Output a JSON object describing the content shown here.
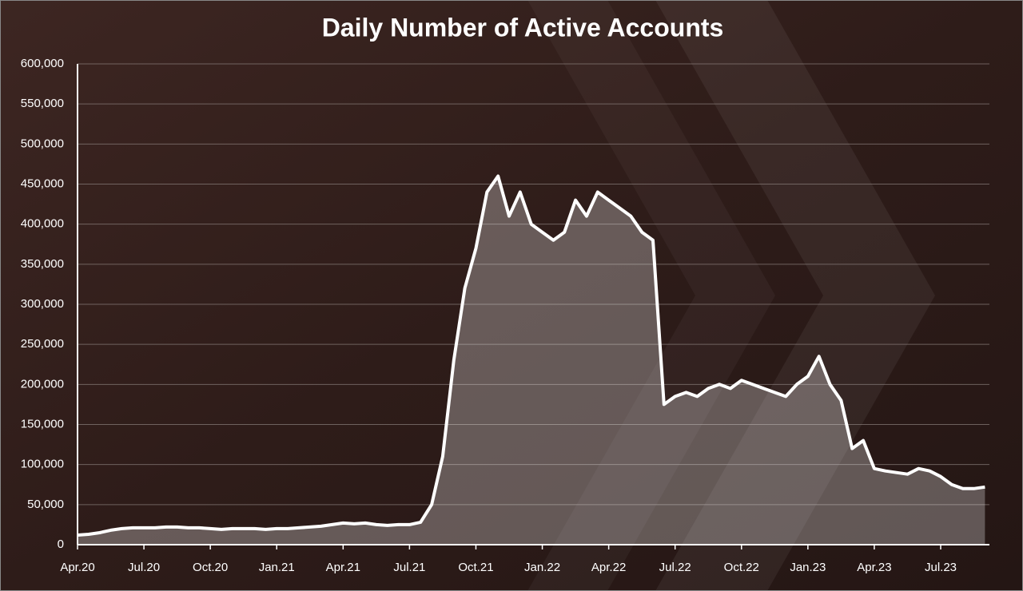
{
  "chart_data": {
    "type": "area",
    "title": "Daily Number of Active Accounts",
    "categories": [
      "Apr.20",
      null,
      null,
      null,
      null,
      null,
      "Jul.20",
      null,
      null,
      null,
      null,
      null,
      "Oct.20",
      null,
      null,
      null,
      null,
      null,
      "Jan.21",
      null,
      null,
      null,
      null,
      null,
      "Apr.21",
      null,
      null,
      null,
      null,
      null,
      "Jul.21",
      null,
      null,
      null,
      null,
      null,
      "Oct.21",
      null,
      null,
      null,
      null,
      null,
      "Jan.22",
      null,
      null,
      null,
      null,
      null,
      "Apr.22",
      null,
      null,
      null,
      null,
      null,
      "Jul.22",
      null,
      null,
      null,
      null,
      null,
      "Oct.22",
      null,
      null,
      null,
      null,
      null,
      "Jan.23",
      null,
      null,
      null,
      null,
      null,
      "Apr.23",
      null,
      null,
      null,
      null,
      null,
      "Jul.23",
      null,
      null,
      null,
      null
    ],
    "values": [
      12000,
      13000,
      15000,
      18000,
      20000,
      21000,
      21000,
      21000,
      22000,
      22000,
      21000,
      21000,
      20000,
      19000,
      20000,
      20000,
      20000,
      19000,
      20000,
      20000,
      21000,
      22000,
      23000,
      25000,
      27000,
      26000,
      27000,
      25000,
      24000,
      25000,
      25000,
      28000,
      50000,
      110000,
      230000,
      320000,
      370000,
      440000,
      460000,
      410000,
      440000,
      400000,
      390000,
      380000,
      390000,
      430000,
      410000,
      440000,
      430000,
      420000,
      410000,
      390000,
      380000,
      175000,
      185000,
      190000,
      185000,
      195000,
      200000,
      195000,
      205000,
      200000,
      195000,
      190000,
      185000,
      200000,
      210000,
      235000,
      200000,
      180000,
      120000,
      130000,
      95000,
      92000,
      90000,
      88000,
      95000,
      92000,
      85000,
      75000,
      70000,
      70000,
      72000
    ],
    "color": "#ffffff",
    "ylim": [
      0,
      600000
    ],
    "yticks": [
      0,
      {
        "value": 50000,
        "label": "50,000"
      },
      {
        "value": 100000,
        "label": "100,000"
      },
      {
        "value": 150000,
        "label": "150,000"
      },
      {
        "value": 200000,
        "label": "200,000"
      },
      {
        "value": 250000,
        "label": "250,000"
      },
      {
        "value": 300000,
        "label": "300,000"
      },
      {
        "value": 350000,
        "label": "350,000"
      },
      {
        "value": 400000,
        "label": "400,000"
      },
      {
        "value": 450000,
        "label": "450,000"
      },
      {
        "value": 500000,
        "label": "500,000"
      },
      {
        "value": 550000,
        "label": "550,000"
      },
      {
        "value": 600000,
        "label": "600,000"
      }
    ],
    "grid": true
  }
}
